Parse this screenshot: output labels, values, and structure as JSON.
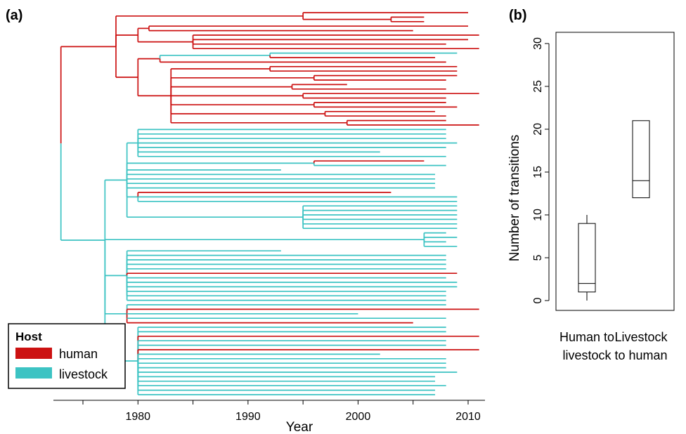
{
  "panel_a": {
    "label": "(a)",
    "xlabel": "Year",
    "legend": {
      "title": "Host",
      "entries": [
        {
          "label": "human",
          "color": "#cc1111"
        },
        {
          "label": "livestock",
          "color": "#3cc3c3"
        }
      ]
    }
  },
  "panel_b": {
    "label": "(b)",
    "ylabel": "Number of transitions"
  },
  "chart_data": [
    {
      "type": "line",
      "subtype": "phylogenetic-tree",
      "title": "",
      "xlabel": "Year",
      "ylabel": "",
      "xlim": [
        1972,
        2012
      ],
      "x_ticks": [
        1980,
        1990,
        2000,
        2010
      ],
      "legend_placement": "bottom-left",
      "colors": {
        "human": "#cc1111",
        "livestock": "#3cc3c3"
      },
      "tree": {
        "t": 1973,
        "n": [
          {
            "t": 1973,
            "h": 1,
            "n": [
              {
                "t": 1978,
                "n": [
                  {
                    "t": 1995,
                    "n": [
                      {
                        "t": 2010
                      },
                      {
                        "t": 2003,
                        "n": [
                          {
                            "t": 2006
                          },
                          {
                            "t": 2006
                          }
                        ]
                      }
                    ]
                  },
                  {
                    "t": 1980,
                    "n": [
                      {
                        "t": 1981,
                        "n": [
                          {
                            "t": 2010
                          },
                          {
                            "t": 2005
                          }
                        ]
                      },
                      {
                        "t": 1985,
                        "n": [
                          {
                            "t": 2011
                          },
                          {
                            "t": 2010
                          },
                          {
                            "t": 2008
                          },
                          {
                            "t": 2011
                          }
                        ]
                      }
                    ]
                  },
                  {
                    "t": 1980,
                    "n": [
                      {
                        "t": 1982,
                        "n": [
                          {
                            "t": 1992,
                            "h": 0,
                            "n": [
                              {
                                "t": 2009
                              },
                              {
                                "t": 2007,
                                "h": 1
                              }
                            ]
                          },
                          {
                            "t": 2008
                          }
                        ]
                      },
                      {
                        "t": 1983,
                        "n": [
                          {
                            "t": 1992,
                            "n": [
                              {
                                "t": 2009
                              },
                              {
                                "t": 2009
                              }
                            ]
                          },
                          {
                            "t": 1996,
                            "n": [
                              {
                                "t": 2009
                              },
                              {
                                "t": 2008
                              }
                            ]
                          },
                          {
                            "t": 1994,
                            "n": [
                              {
                                "t": 1999
                              },
                              {
                                "t": 2008
                              }
                            ]
                          },
                          {
                            "t": 1995,
                            "n": [
                              {
                                "t": 2011
                              },
                              {
                                "t": 2008
                              }
                            ]
                          },
                          {
                            "t": 1996,
                            "n": [
                              {
                                "t": 2008
                              },
                              {
                                "t": 2009
                              }
                            ]
                          },
                          {
                            "t": 1997,
                            "n": [
                              {
                                "t": 2007
                              },
                              {
                                "t": 2008
                              }
                            ]
                          },
                          {
                            "t": 1999,
                            "n": [
                              {
                                "t": 2008
                              },
                              {
                                "t": 2011
                              }
                            ]
                          }
                        ]
                      }
                    ]
                  }
                ]
              }
            ]
          },
          {
            "t": 1973,
            "h": 0,
            "n": [
              {
                "t": 1977,
                "n": [
                  {
                    "t": 1979,
                    "n": [
                      {
                        "t": 1980,
                        "n": [
                          {
                            "t": 2008
                          },
                          {
                            "t": 2008
                          },
                          {
                            "t": 2008
                          },
                          {
                            "t": 2009
                          },
                          {
                            "t": 2008
                          },
                          {
                            "t": 2002
                          },
                          {
                            "t": 2008
                          }
                        ]
                      },
                      {
                        "t": 1996,
                        "n": [
                          {
                            "t": 2006,
                            "h": 1
                          },
                          {
                            "t": 2008
                          }
                        ]
                      },
                      {
                        "t": 1979,
                        "n": [
                          {
                            "t": 1993
                          },
                          {
                            "t": 2007
                          },
                          {
                            "t": 2007
                          },
                          {
                            "t": 2007
                          },
                          {
                            "t": 2007
                          }
                        ]
                      },
                      {
                        "t": 1980,
                        "n": [
                          {
                            "t": 2003,
                            "h": 1
                          },
                          {
                            "t": 2009
                          },
                          {
                            "t": 2009
                          }
                        ]
                      },
                      {
                        "t": 1995,
                        "n": [
                          {
                            "t": 2009
                          },
                          {
                            "t": 2009
                          },
                          {
                            "t": 2009
                          },
                          {
                            "t": 2009
                          },
                          {
                            "t": 2009
                          },
                          {
                            "t": 2009
                          }
                        ]
                      }
                    ]
                  },
                  {
                    "t": 1977,
                    "n": [
                      {
                        "t": 2006,
                        "n": [
                          {
                            "t": 2008
                          },
                          {
                            "t": 2009
                          },
                          {
                            "t": 2008
                          },
                          {
                            "t": 2009
                          }
                        ]
                      },
                      {
                        "t": 1979,
                        "n": [
                          {
                            "t": 1993
                          },
                          {
                            "t": 2008
                          },
                          {
                            "t": 2008
                          },
                          {
                            "t": 2008
                          },
                          {
                            "t": 2008
                          },
                          {
                            "t": 2009,
                            "h": 1
                          },
                          {
                            "t": 2008
                          },
                          {
                            "t": 2009
                          },
                          {
                            "t": 2009
                          },
                          {
                            "t": 2008
                          },
                          {
                            "t": 2008
                          },
                          {
                            "t": 2008
                          }
                        ]
                      },
                      {
                        "t": 1979,
                        "n": [
                          {
                            "t": 2008
                          },
                          {
                            "t": 2011,
                            "h": 1
                          },
                          {
                            "t": 2000
                          },
                          {
                            "t": 2008
                          },
                          {
                            "t": 2005,
                            "h": 1
                          }
                        ]
                      },
                      {
                        "t": 1980,
                        "n": [
                          {
                            "t": 2008
                          },
                          {
                            "t": 2008
                          },
                          {
                            "t": 2011,
                            "h": 1
                          },
                          {
                            "t": 2008
                          },
                          {
                            "t": 2008
                          },
                          {
                            "t": 2011,
                            "h": 1
                          },
                          {
                            "t": 2002
                          },
                          {
                            "t": 2008
                          },
                          {
                            "t": 2008
                          },
                          {
                            "t": 2008
                          },
                          {
                            "t": 2009
                          },
                          {
                            "t": 2007
                          },
                          {
                            "t": 2007
                          },
                          {
                            "t": 2008
                          },
                          {
                            "t": 2007
                          },
                          {
                            "t": 2007
                          }
                        ]
                      }
                    ]
                  }
                ]
              }
            ]
          }
        ]
      }
    },
    {
      "type": "box",
      "title": "",
      "xlabel": "",
      "ylabel": "Number of transitions",
      "ylim": [
        0,
        30
      ],
      "y_ticks": [
        0,
        5,
        10,
        15,
        20,
        25,
        30
      ],
      "categories": [
        "Human to livestock",
        "Livestock to human"
      ],
      "category_lines": [
        [
          "Human to",
          "livestock"
        ],
        [
          "Livestock",
          "to human"
        ]
      ],
      "boxes": [
        {
          "category": "Human to livestock",
          "whisker_low": 0,
          "q1": 1,
          "median": 2,
          "q3": 9,
          "whisker_high": 10
        },
        {
          "category": "Livestock to human",
          "whisker_low": 12,
          "q1": 12,
          "median": 14,
          "q3": 21,
          "whisker_high": 21
        }
      ]
    }
  ]
}
